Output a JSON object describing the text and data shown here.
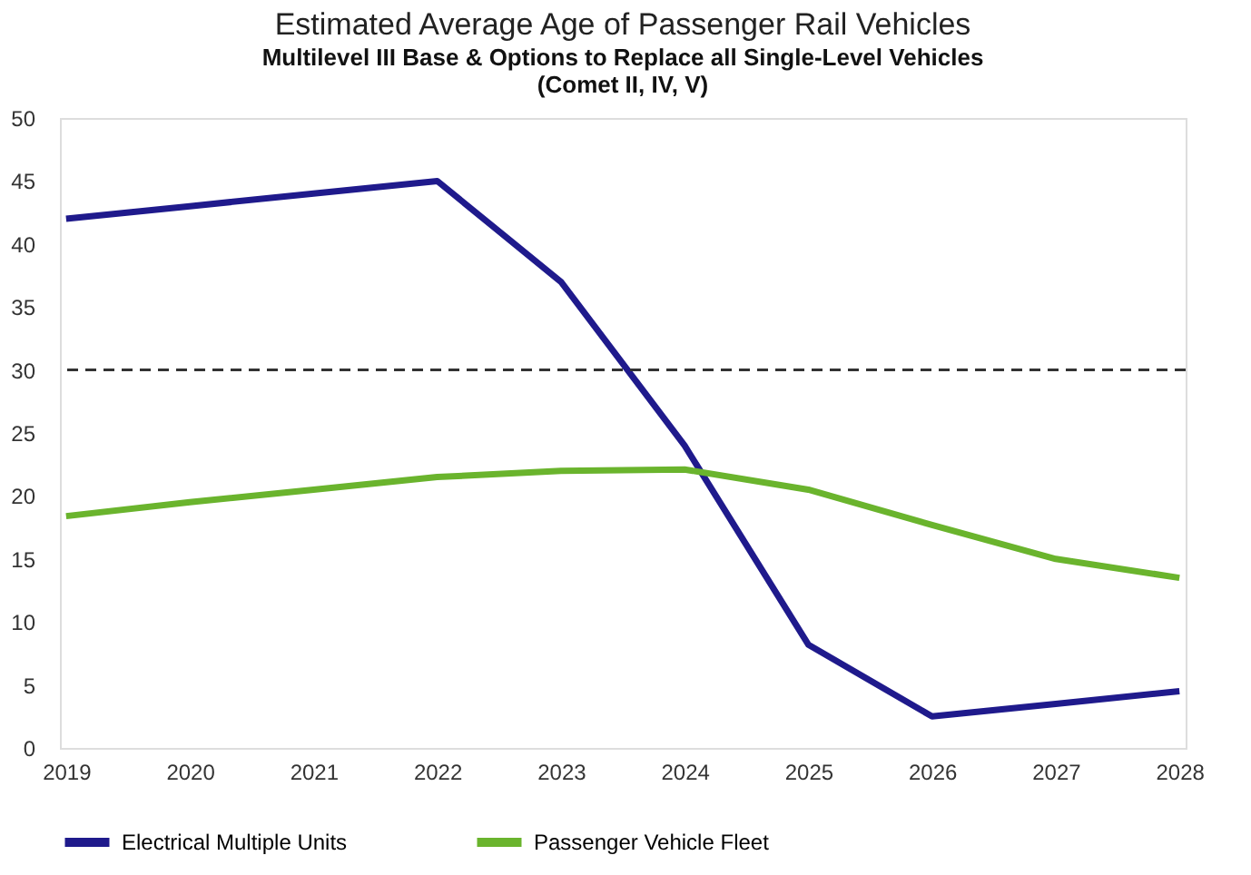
{
  "chart_data": {
    "type": "line",
    "title": "Estimated  Average Age of Passenger Rail Vehicles",
    "subtitle": "Multilevel III Base & Options to Replace all Single-Level Vehicles\n(Comet II, IV, V)",
    "categories": [
      "2019",
      "2020",
      "2021",
      "2022",
      "2023",
      "2024",
      "2025",
      "2026",
      "2027",
      "2028"
    ],
    "series": [
      {
        "name": "Electrical Multiple Units",
        "color": "#1f1a8c",
        "values": [
          42,
          43,
          44,
          45,
          37,
          24,
          8.2,
          2.5,
          3.5,
          4.5
        ]
      },
      {
        "name": "Passenger Vehicle Fleet",
        "color": "#6ab42d",
        "values": [
          18.4,
          19.5,
          20.5,
          21.5,
          22,
          22.1,
          20.5,
          17.7,
          15,
          13.5
        ]
      }
    ],
    "ylim": [
      0,
      50
    ],
    "yticks": [
      0,
      5,
      10,
      15,
      20,
      25,
      30,
      35,
      40,
      45,
      50
    ],
    "ref_lines": [
      {
        "axis": "y",
        "value": 30,
        "color": "#333333",
        "line_style": "dashed"
      }
    ],
    "grid": false,
    "legend": "bottom",
    "marker": "none",
    "line_style": "solid"
  }
}
